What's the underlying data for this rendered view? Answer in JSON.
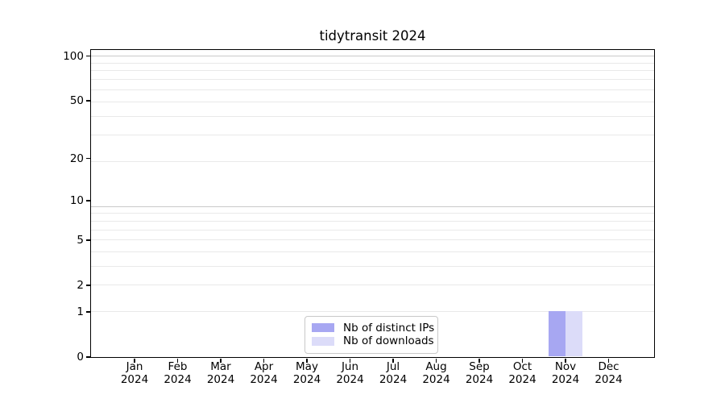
{
  "chart_data": {
    "type": "bar",
    "title": "tidytransit 2024",
    "categories": [
      "Jan 2024",
      "Feb 2024",
      "Mar 2024",
      "Apr 2024",
      "May 2024",
      "Jun 2024",
      "Jul 2024",
      "Aug 2024",
      "Sep 2024",
      "Oct 2024",
      "Nov 2024",
      "Dec 2024"
    ],
    "series": [
      {
        "name": "Nb of distinct IPs",
        "color": "#a7a7f2",
        "values": [
          0,
          0,
          0,
          0,
          0,
          0,
          0,
          0,
          0,
          0,
          1,
          0
        ]
      },
      {
        "name": "Nb of downloads",
        "color": "#dcdcf9",
        "values": [
          0,
          0,
          0,
          0,
          0,
          0,
          0,
          0,
          0,
          0,
          1,
          0
        ]
      }
    ],
    "xlabel": "",
    "ylabel": "",
    "y_scale": "log10(value+1)",
    "y_tick_values": [
      0,
      1,
      2,
      5,
      10,
      20,
      50,
      100
    ],
    "ylim": [
      0,
      110
    ],
    "grid": "horizontal major and minor gridlines",
    "legend_position": "lower center",
    "colors": {
      "axis": "#000000",
      "grid_major": "#c9c9c9",
      "grid_minor": "#e9e9e9",
      "background": "#ffffff"
    }
  }
}
